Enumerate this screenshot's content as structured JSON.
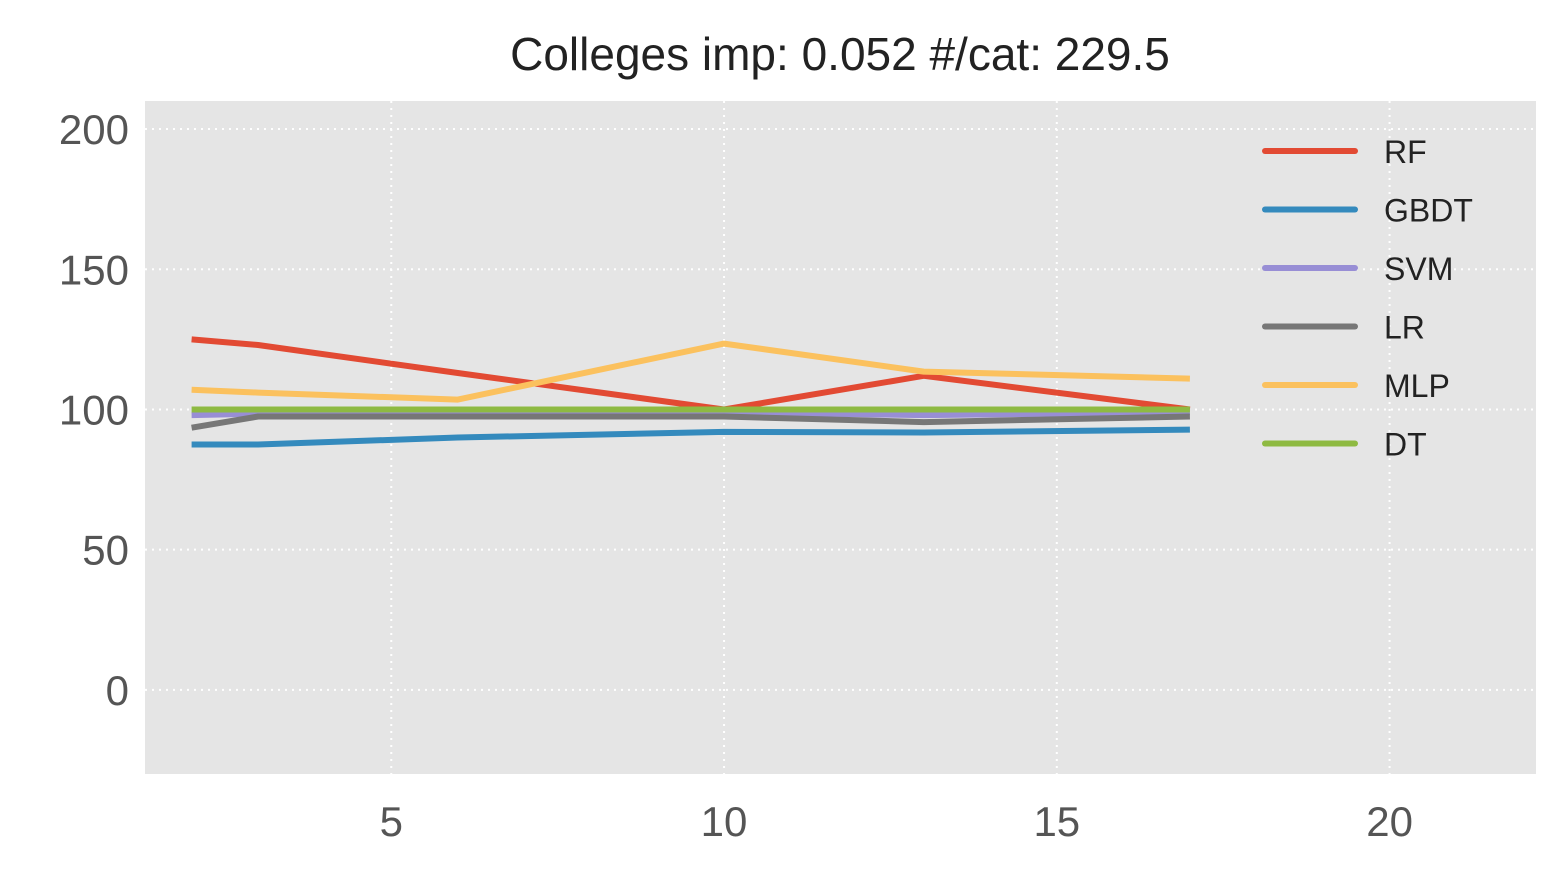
{
  "chart_data": {
    "type": "line",
    "title": "Colleges imp: 0.052 #/cat: 229.5",
    "xlabel": "",
    "ylabel": "",
    "xlim": [
      1.3,
      22.2
    ],
    "ylim": [
      -30,
      210
    ],
    "xticks": [
      5,
      10,
      15,
      20
    ],
    "yticks": [
      0,
      50,
      100,
      150,
      200
    ],
    "grid": true,
    "legend_position": "top-right",
    "x": [
      2,
      3,
      6,
      10,
      13,
      17
    ],
    "series": [
      {
        "name": "RF",
        "color": "#E24A33",
        "values": [
          125,
          123,
          113,
          100,
          112,
          100
        ]
      },
      {
        "name": "GBDT",
        "color": "#348ABD",
        "values": [
          87.5,
          87.5,
          90,
          92,
          91.8,
          92.8
        ]
      },
      {
        "name": "SVM",
        "color": "#988ED5",
        "values": [
          98,
          98.5,
          99,
          99,
          98,
          99
        ]
      },
      {
        "name": "LR",
        "color": "#777777",
        "values": [
          93.5,
          97.5,
          97.5,
          97.5,
          95.5,
          97.5
        ]
      },
      {
        "name": "MLP",
        "color": "#FBC15E",
        "values": [
          107,
          106,
          103.5,
          123.5,
          113.5,
          111
        ]
      },
      {
        "name": "DT",
        "color": "#8EBA42",
        "values": [
          100,
          100,
          100,
          100,
          100,
          100
        ]
      }
    ]
  }
}
